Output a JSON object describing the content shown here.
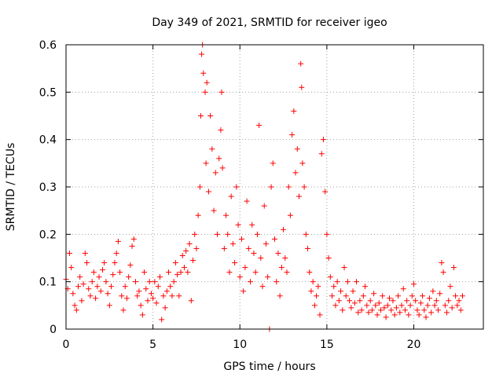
{
  "chart_data": {
    "type": "scatter",
    "title": "Day 349 of 2021, SRMTID for receiver igeo",
    "xlabel": "GPS time / hours",
    "ylabel": "SRMTID / TECUs",
    "xlim": [
      0,
      24
    ],
    "ylim": [
      0,
      0.6
    ],
    "xticks": [
      0,
      5,
      10,
      15,
      20
    ],
    "yticks": [
      0,
      0.1,
      0.2,
      0.3,
      0.4,
      0.5,
      0.6
    ],
    "xtick_labels": [
      "0",
      "5",
      "10",
      "15",
      "20"
    ],
    "ytick_labels": [
      "0",
      "0.1",
      "0.2",
      "0.3",
      "0.4",
      "0.5",
      "0.6"
    ],
    "grid": true,
    "marker": "+",
    "color": "#ff0000",
    "series": [
      {
        "name": "SRMTID",
        "points": [
          [
            0.0,
            0.105
          ],
          [
            0.1,
            0.085
          ],
          [
            0.2,
            0.16
          ],
          [
            0.3,
            0.13
          ],
          [
            0.4,
            0.075
          ],
          [
            0.5,
            0.05
          ],
          [
            0.6,
            0.04
          ],
          [
            0.7,
            0.09
          ],
          [
            0.8,
            0.11
          ],
          [
            0.9,
            0.06
          ],
          [
            1.0,
            0.095
          ],
          [
            1.1,
            0.16
          ],
          [
            1.2,
            0.14
          ],
          [
            1.3,
            0.085
          ],
          [
            1.4,
            0.07
          ],
          [
            1.5,
            0.1
          ],
          [
            1.6,
            0.12
          ],
          [
            1.7,
            0.065
          ],
          [
            1.8,
            0.09
          ],
          [
            1.9,
            0.11
          ],
          [
            2.0,
            0.08
          ],
          [
            2.1,
            0.125
          ],
          [
            2.2,
            0.14
          ],
          [
            2.3,
            0.1
          ],
          [
            2.4,
            0.075
          ],
          [
            2.5,
            0.05
          ],
          [
            2.6,
            0.09
          ],
          [
            2.7,
            0.115
          ],
          [
            2.8,
            0.14
          ],
          [
            2.9,
            0.16
          ],
          [
            3.0,
            0.185
          ],
          [
            3.1,
            0.12
          ],
          [
            3.2,
            0.07
          ],
          [
            3.3,
            0.04
          ],
          [
            3.4,
            0.09
          ],
          [
            3.5,
            0.065
          ],
          [
            3.6,
            0.11
          ],
          [
            3.7,
            0.135
          ],
          [
            3.8,
            0.175
          ],
          [
            3.9,
            0.19
          ],
          [
            4.0,
            0.1
          ],
          [
            4.1,
            0.07
          ],
          [
            4.2,
            0.08
          ],
          [
            4.3,
            0.05
          ],
          [
            4.4,
            0.03
          ],
          [
            4.5,
            0.12
          ],
          [
            4.6,
            0.085
          ],
          [
            4.7,
            0.06
          ],
          [
            4.8,
            0.1
          ],
          [
            4.9,
            0.075
          ],
          [
            5.0,
            0.065
          ],
          [
            5.1,
            0.1
          ],
          [
            5.2,
            0.055
          ],
          [
            5.3,
            0.09
          ],
          [
            5.4,
            0.11
          ],
          [
            5.5,
            0.02
          ],
          [
            5.6,
            0.07
          ],
          [
            5.7,
            0.045
          ],
          [
            5.8,
            0.08
          ],
          [
            5.9,
            0.12
          ],
          [
            6.0,
            0.09
          ],
          [
            6.1,
            0.07
          ],
          [
            6.2,
            0.1
          ],
          [
            6.3,
            0.14
          ],
          [
            6.4,
            0.115
          ],
          [
            6.5,
            0.07
          ],
          [
            6.6,
            0.12
          ],
          [
            6.7,
            0.155
          ],
          [
            6.8,
            0.13
          ],
          [
            6.9,
            0.165
          ],
          [
            7.0,
            0.12
          ],
          [
            7.1,
            0.18
          ],
          [
            7.2,
            0.06
          ],
          [
            7.3,
            0.145
          ],
          [
            7.4,
            0.2
          ],
          [
            7.5,
            0.17
          ],
          [
            7.6,
            0.24
          ],
          [
            7.7,
            0.3
          ],
          [
            7.75,
            0.45
          ],
          [
            7.8,
            0.58
          ],
          [
            7.85,
            0.6
          ],
          [
            7.9,
            0.54
          ],
          [
            8.0,
            0.5
          ],
          [
            8.05,
            0.35
          ],
          [
            8.1,
            0.52
          ],
          [
            8.2,
            0.29
          ],
          [
            8.3,
            0.45
          ],
          [
            8.4,
            0.38
          ],
          [
            8.5,
            0.25
          ],
          [
            8.6,
            0.33
          ],
          [
            8.7,
            0.2
          ],
          [
            8.8,
            0.36
          ],
          [
            8.9,
            0.42
          ],
          [
            8.95,
            0.5
          ],
          [
            9.0,
            0.34
          ],
          [
            9.1,
            0.17
          ],
          [
            9.2,
            0.24
          ],
          [
            9.3,
            0.2
          ],
          [
            9.4,
            0.12
          ],
          [
            9.5,
            0.28
          ],
          [
            9.6,
            0.18
          ],
          [
            9.7,
            0.14
          ],
          [
            9.8,
            0.3
          ],
          [
            9.9,
            0.22
          ],
          [
            10.0,
            0.11
          ],
          [
            10.1,
            0.19
          ],
          [
            10.2,
            0.08
          ],
          [
            10.3,
            0.13
          ],
          [
            10.4,
            0.27
          ],
          [
            10.5,
            0.17
          ],
          [
            10.6,
            0.1
          ],
          [
            10.7,
            0.22
          ],
          [
            10.8,
            0.16
          ],
          [
            10.9,
            0.12
          ],
          [
            11.0,
            0.2
          ],
          [
            11.1,
            0.43
          ],
          [
            11.2,
            0.15
          ],
          [
            11.3,
            0.09
          ],
          [
            11.4,
            0.26
          ],
          [
            11.5,
            0.18
          ],
          [
            11.6,
            0.11
          ],
          [
            11.7,
            0.0
          ],
          [
            11.8,
            0.3
          ],
          [
            11.9,
            0.35
          ],
          [
            12.0,
            0.19
          ],
          [
            12.1,
            0.1
          ],
          [
            12.2,
            0.16
          ],
          [
            12.3,
            0.07
          ],
          [
            12.4,
            0.13
          ],
          [
            12.5,
            0.21
          ],
          [
            12.6,
            0.15
          ],
          [
            12.7,
            0.12
          ],
          [
            12.8,
            0.3
          ],
          [
            12.9,
            0.24
          ],
          [
            13.0,
            0.41
          ],
          [
            13.1,
            0.46
          ],
          [
            13.2,
            0.33
          ],
          [
            13.3,
            0.38
          ],
          [
            13.4,
            0.28
          ],
          [
            13.5,
            0.56
          ],
          [
            13.55,
            0.51
          ],
          [
            13.6,
            0.35
          ],
          [
            13.7,
            0.3
          ],
          [
            13.8,
            0.2
          ],
          [
            13.9,
            0.17
          ],
          [
            14.0,
            0.12
          ],
          [
            14.1,
            0.08
          ],
          [
            14.2,
            0.1
          ],
          [
            14.3,
            0.05
          ],
          [
            14.4,
            0.07
          ],
          [
            14.5,
            0.09
          ],
          [
            14.6,
            0.03
          ],
          [
            14.7,
            0.37
          ],
          [
            14.8,
            0.4
          ],
          [
            14.9,
            0.29
          ],
          [
            15.0,
            0.2
          ],
          [
            15.1,
            0.15
          ],
          [
            15.2,
            0.11
          ],
          [
            15.3,
            0.07
          ],
          [
            15.4,
            0.09
          ],
          [
            15.5,
            0.05
          ],
          [
            15.6,
            0.1
          ],
          [
            15.7,
            0.06
          ],
          [
            15.8,
            0.08
          ],
          [
            15.9,
            0.04
          ],
          [
            16.0,
            0.13
          ],
          [
            16.1,
            0.07
          ],
          [
            16.2,
            0.1
          ],
          [
            16.3,
            0.06
          ],
          [
            16.4,
            0.045
          ],
          [
            16.5,
            0.08
          ],
          [
            16.6,
            0.055
          ],
          [
            16.7,
            0.1
          ],
          [
            16.8,
            0.035
          ],
          [
            16.9,
            0.06
          ],
          [
            17.0,
            0.04
          ],
          [
            17.1,
            0.07
          ],
          [
            17.2,
            0.09
          ],
          [
            17.3,
            0.05
          ],
          [
            17.4,
            0.035
          ],
          [
            17.5,
            0.06
          ],
          [
            17.6,
            0.04
          ],
          [
            17.7,
            0.075
          ],
          [
            17.8,
            0.05
          ],
          [
            17.9,
            0.03
          ],
          [
            18.0,
            0.055
          ],
          [
            18.1,
            0.04
          ],
          [
            18.2,
            0.07
          ],
          [
            18.3,
            0.045
          ],
          [
            18.4,
            0.025
          ],
          [
            18.5,
            0.05
          ],
          [
            18.6,
            0.065
          ],
          [
            18.7,
            0.04
          ],
          [
            18.8,
            0.06
          ],
          [
            18.9,
            0.03
          ],
          [
            19.0,
            0.045
          ],
          [
            19.1,
            0.07
          ],
          [
            19.2,
            0.035
          ],
          [
            19.3,
            0.05
          ],
          [
            19.4,
            0.085
          ],
          [
            19.5,
            0.04
          ],
          [
            19.6,
            0.06
          ],
          [
            19.7,
            0.03
          ],
          [
            19.8,
            0.05
          ],
          [
            19.9,
            0.07
          ],
          [
            20.0,
            0.095
          ],
          [
            20.1,
            0.06
          ],
          [
            20.2,
            0.04
          ],
          [
            20.3,
            0.03
          ],
          [
            20.4,
            0.055
          ],
          [
            20.5,
            0.07
          ],
          [
            20.6,
            0.04
          ],
          [
            20.7,
            0.025
          ],
          [
            20.8,
            0.05
          ],
          [
            20.9,
            0.065
          ],
          [
            21.0,
            0.035
          ],
          [
            21.1,
            0.08
          ],
          [
            21.2,
            0.05
          ],
          [
            21.3,
            0.06
          ],
          [
            21.4,
            0.04
          ],
          [
            21.5,
            0.075
          ],
          [
            21.6,
            0.14
          ],
          [
            21.7,
            0.12
          ],
          [
            21.8,
            0.05
          ],
          [
            21.9,
            0.035
          ],
          [
            22.0,
            0.06
          ],
          [
            22.1,
            0.09
          ],
          [
            22.2,
            0.045
          ],
          [
            22.3,
            0.13
          ],
          [
            22.4,
            0.07
          ],
          [
            22.5,
            0.05
          ],
          [
            22.6,
            0.06
          ],
          [
            22.7,
            0.04
          ],
          [
            22.8,
            0.07
          ]
        ]
      }
    ]
  }
}
